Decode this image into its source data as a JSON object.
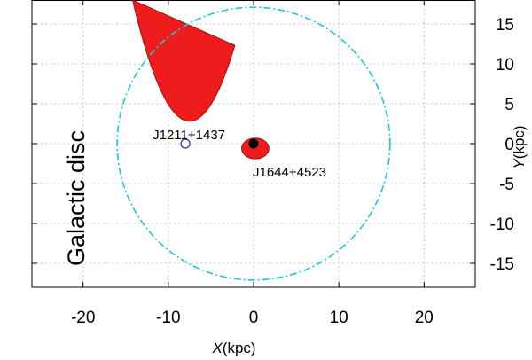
{
  "chart_data": {
    "type": "scatter",
    "xlim": [
      -26,
      26
    ],
    "ylim": [
      -18,
      18
    ],
    "x_ticks": [
      -20,
      -10,
      0,
      10,
      20
    ],
    "y_ticks": [
      -15,
      -10,
      -5,
      0,
      5,
      10,
      15
    ],
    "x_tick_labels": [
      "-20",
      "-10",
      "0",
      "10",
      "20"
    ],
    "y_tick_labels": [
      "-15",
      "-10",
      "-5",
      "0",
      "5",
      "10",
      "15"
    ],
    "grid": true,
    "xlabel_italic": "X",
    "xlabel_unit": "(kpc)",
    "ylabel_italic": "Y",
    "ylabel_unit": "(kpc)",
    "ylabel_position": "right",
    "disc_text": "Galactic disc",
    "galactic_disc_radius_kpc": 16,
    "disc_color": "#1ec8d8",
    "region_color": "#ee1c1c",
    "sources": [
      {
        "name": "J1211+1437",
        "x": -8,
        "y": 0,
        "marker": "open-circle",
        "color": "#2030c8",
        "region": {
          "shape": "parabola",
          "vertex_x": -7.5,
          "vertex_y": 2.8,
          "top_y": 18,
          "top_x_left": -14.2,
          "top_x_right": -2.2
        }
      },
      {
        "name": "J1644+4523",
        "x": 0,
        "y": 0,
        "marker": "filled-circle",
        "color": "#000000",
        "region": {
          "shape": "ellipse",
          "center_x": 0.2,
          "center_y": -0.6,
          "radius_x": 1.6,
          "radius_y": 1.3
        }
      }
    ]
  }
}
